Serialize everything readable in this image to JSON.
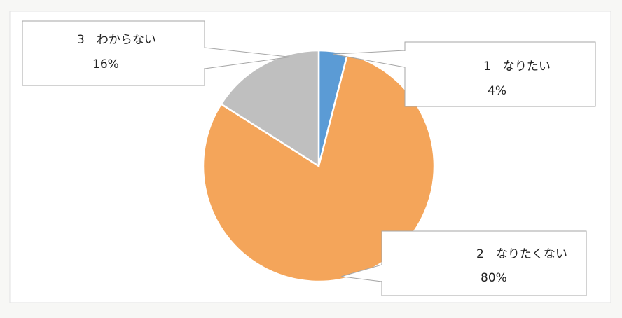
{
  "chart_data": {
    "type": "pie",
    "start_angle_deg": 0,
    "direction": "clockwise",
    "slices": [
      {
        "label": "1　なりたい",
        "value": 4,
        "value_label": "4%",
        "color": "#5b9bd5"
      },
      {
        "label": "2　なりたくない",
        "value": 80,
        "value_label": "80%",
        "color": "#f4a55a"
      },
      {
        "label": "3　わからない",
        "value": 16,
        "value_label": "16%",
        "color": "#bfbfbf"
      }
    ],
    "data_labels": "callouts",
    "legend": "none"
  }
}
